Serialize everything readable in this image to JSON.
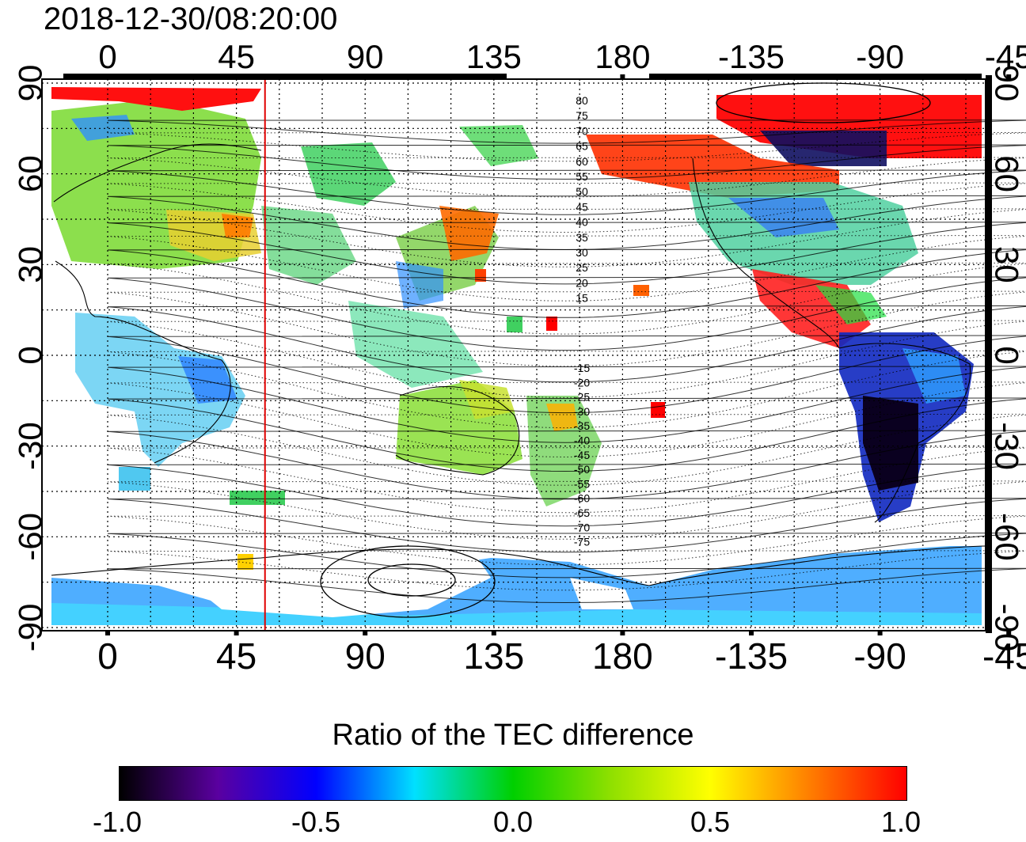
{
  "timestamp": "2018-12-30/08:20:00",
  "colorbar": {
    "title": "Ratio of the TEC difference",
    "labels": [
      "-1.0",
      "-0.5",
      "0.0",
      "0.5",
      "1.0"
    ],
    "stops": [
      {
        "v": -1.0,
        "c": "#000000"
      },
      {
        "v": -0.75,
        "c": "#5a00a0"
      },
      {
        "v": -0.5,
        "c": "#0000ff"
      },
      {
        "v": -0.25,
        "c": "#00e0ff"
      },
      {
        "v": 0.0,
        "c": "#00d000"
      },
      {
        "v": 0.25,
        "c": "#90e000"
      },
      {
        "v": 0.5,
        "c": "#ffff00"
      },
      {
        "v": 0.75,
        "c": "#ff8000"
      },
      {
        "v": 1.0,
        "c": "#ff0000"
      }
    ]
  },
  "axes": {
    "x_tick_labels": [
      "0",
      "45",
      "90",
      "135",
      "180",
      "-135",
      "-90",
      "-45"
    ],
    "y_tick_labels_left": [
      "90",
      "60",
      "30",
      "0",
      "-30",
      "-60",
      "-90"
    ],
    "y_tick_labels_right": [
      "90",
      "60",
      "30",
      "0",
      "-30",
      "-60",
      "-90"
    ]
  },
  "magnetic_latitude_labels": [
    "80",
    "75",
    "70",
    "65",
    "60",
    "55",
    "50",
    "45",
    "40",
    "35",
    "30",
    "25",
    "20",
    "15",
    "-15",
    "-20",
    "-25",
    "-30",
    "-35",
    "-40",
    "-45",
    "-50",
    "-55",
    "-60",
    "-65",
    "-70",
    "-75"
  ],
  "terminator_longitude": 55
}
